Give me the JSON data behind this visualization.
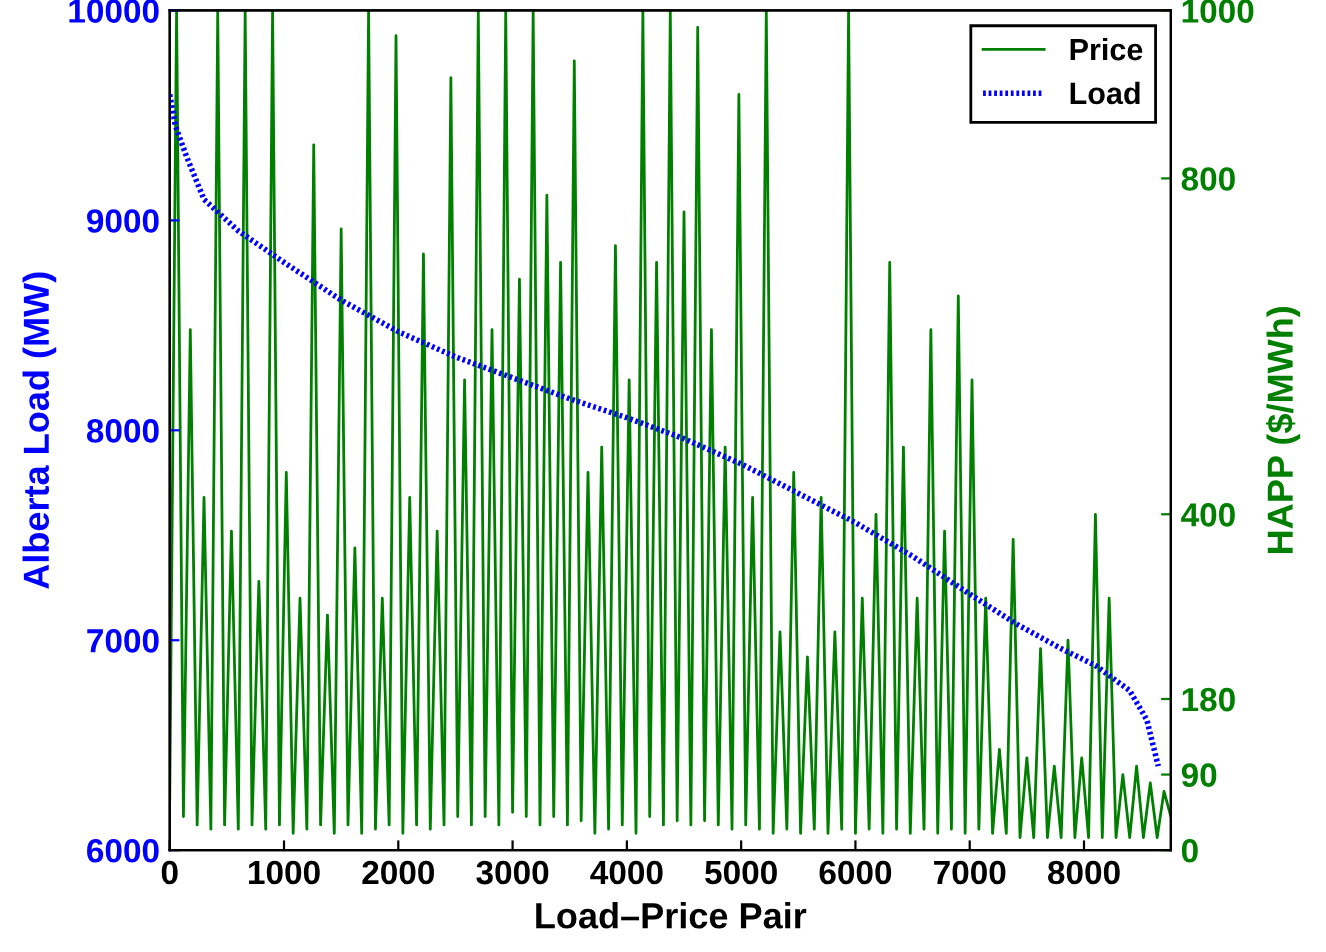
{
  "chart_data": {
    "type": "line",
    "xlabel": "Load–Price Pair",
    "ylabel": "Alberta Load (MW)",
    "y2label": "HAPP ($/MWh)",
    "xlim": [
      0,
      8760
    ],
    "xticks": [
      0,
      1000,
      2000,
      3000,
      4000,
      5000,
      6000,
      7000,
      8000
    ],
    "ylim": [
      6000,
      10000
    ],
    "yticks": [
      6000,
      7000,
      8000,
      9000,
      10000
    ],
    "y2lim": [
      0,
      1000
    ],
    "y2ticks": [
      0,
      90,
      180,
      400,
      800,
      1000
    ],
    "grid": false,
    "legend": "top right",
    "series": [
      {
        "name": "Price",
        "color": "#007f00",
        "axis": "y2",
        "line_style": "solid",
        "x": [
          0,
          60,
          120,
          180,
          240,
          300,
          360,
          420,
          480,
          540,
          600,
          660,
          720,
          780,
          840,
          900,
          960,
          1020,
          1080,
          1140,
          1200,
          1260,
          1320,
          1380,
          1440,
          1500,
          1560,
          1620,
          1680,
          1740,
          1800,
          1860,
          1920,
          1980,
          2040,
          2100,
          2160,
          2220,
          2280,
          2340,
          2400,
          2460,
          2520,
          2580,
          2640,
          2700,
          2760,
          2820,
          2880,
          2940,
          3000,
          3060,
          3120,
          3180,
          3240,
          3300,
          3360,
          3420,
          3480,
          3540,
          3600,
          3660,
          3720,
          3780,
          3840,
          3900,
          3960,
          4020,
          4080,
          4140,
          4200,
          4260,
          4320,
          4380,
          4440,
          4500,
          4560,
          4620,
          4680,
          4740,
          4800,
          4860,
          4920,
          4980,
          5040,
          5100,
          5160,
          5220,
          5280,
          5340,
          5400,
          5460,
          5520,
          5580,
          5640,
          5700,
          5760,
          5820,
          5880,
          5940,
          6000,
          6060,
          6120,
          6180,
          6240,
          6300,
          6360,
          6420,
          6480,
          6540,
          6600,
          6660,
          6720,
          6780,
          6840,
          6900,
          6960,
          7020,
          7080,
          7140,
          7200,
          7260,
          7320,
          7380,
          7440,
          7500,
          7560,
          7620,
          7680,
          7740,
          7800,
          7860,
          7920,
          7980,
          8040,
          8100,
          8160,
          8220,
          8280,
          8340,
          8400,
          8460,
          8520,
          8580,
          8640,
          8700,
          8760
        ],
        "values": [
          60,
          1000,
          40,
          620,
          30,
          420,
          25,
          1000,
          30,
          380,
          25,
          1000,
          30,
          320,
          25,
          1000,
          30,
          450,
          20,
          300,
          25,
          840,
          30,
          280,
          20,
          740,
          30,
          360,
          20,
          1000,
          25,
          300,
          30,
          970,
          20,
          420,
          30,
          710,
          25,
          380,
          30,
          920,
          40,
          560,
          30,
          1000,
          40,
          620,
          30,
          1000,
          45,
          680,
          40,
          1000,
          30,
          780,
          40,
          700,
          30,
          940,
          35,
          450,
          20,
          480,
          25,
          720,
          30,
          560,
          20,
          1000,
          40,
          700,
          30,
          1000,
          35,
          760,
          30,
          980,
          35,
          620,
          30,
          480,
          25,
          900,
          30,
          420,
          25,
          1000,
          20,
          260,
          25,
          450,
          20,
          230,
          25,
          420,
          20,
          260,
          25,
          1000,
          20,
          300,
          25,
          400,
          20,
          700,
          25,
          480,
          20,
          300,
          25,
          620,
          20,
          380,
          25,
          660,
          20,
          560,
          25,
          300,
          20,
          120,
          20,
          370,
          15,
          110,
          15,
          240,
          15,
          100,
          15,
          250,
          15,
          110,
          15,
          400,
          15,
          300,
          15,
          90,
          15,
          100,
          15,
          80,
          15,
          70,
          40
        ]
      },
      {
        "name": "Load",
        "color": "#0000ff",
        "line_style": "dotted",
        "x": [
          0,
          50,
          150,
          300,
          600,
          1000,
          1500,
          2000,
          2500,
          3000,
          3500,
          4000,
          4500,
          5000,
          5500,
          6000,
          6500,
          7000,
          7400,
          7800,
          8100,
          8400,
          8550,
          8650
        ],
        "values": [
          9600,
          9450,
          9300,
          9100,
          8950,
          8800,
          8620,
          8470,
          8350,
          8250,
          8150,
          8060,
          7960,
          7840,
          7700,
          7560,
          7400,
          7220,
          7080,
          6960,
          6880,
          6760,
          6620,
          6400
        ]
      }
    ]
  }
}
